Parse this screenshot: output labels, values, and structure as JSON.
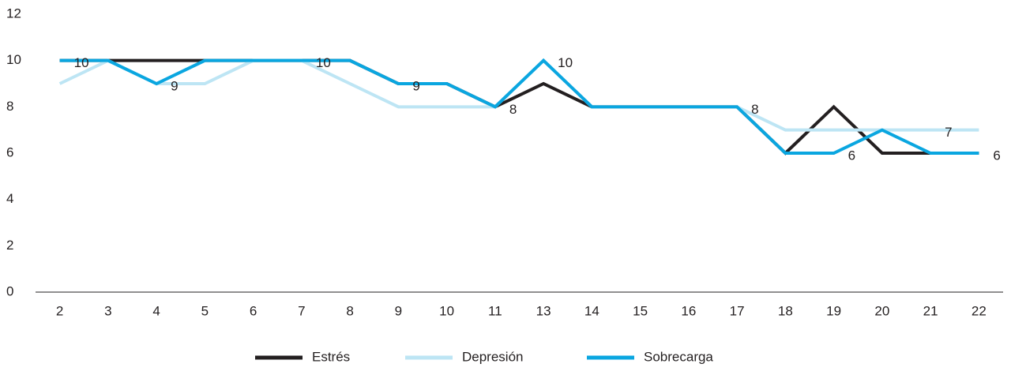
{
  "chart_data": {
    "type": "line",
    "categories": [
      "2",
      "3",
      "4",
      "5",
      "6",
      "7",
      "8",
      "9",
      "10",
      "11",
      "13",
      "14",
      "15",
      "16",
      "17",
      "18",
      "19",
      "20",
      "21",
      "22"
    ],
    "series": [
      {
        "name": "Estrés",
        "color": "#231f20",
        "values": [
          10,
          10,
          10,
          10,
          10,
          10,
          10,
          9,
          9,
          8,
          9,
          8,
          8,
          8,
          8,
          6,
          8,
          6,
          6,
          6
        ]
      },
      {
        "name": "Depresión",
        "color": "#bde5f4",
        "values": [
          9,
          10,
          9,
          9,
          10,
          10,
          9,
          8,
          8,
          8,
          10,
          8,
          8,
          8,
          8,
          7,
          7,
          7,
          7,
          7
        ],
        "value_labels": [
          null,
          null,
          "9",
          null,
          null,
          null,
          null,
          null,
          null,
          null,
          null,
          null,
          null,
          null,
          "8",
          null,
          null,
          null,
          "7",
          null
        ]
      },
      {
        "name": "Sobrecarga",
        "color": "#0aa6e0",
        "values": [
          10,
          10,
          9,
          10,
          10,
          10,
          10,
          9,
          9,
          8,
          10,
          8,
          8,
          8,
          8,
          6,
          6,
          7,
          6,
          6
        ],
        "value_labels": [
          "10",
          null,
          null,
          null,
          null,
          "10",
          null,
          "9",
          null,
          "8",
          "10",
          null,
          null,
          null,
          null,
          null,
          "6",
          null,
          null,
          "6"
        ]
      }
    ],
    "ylim": [
      0,
      12
    ],
    "yticks": [
      0,
      2,
      4,
      6,
      8,
      10,
      12
    ],
    "grid": false,
    "legend": "bottom"
  }
}
